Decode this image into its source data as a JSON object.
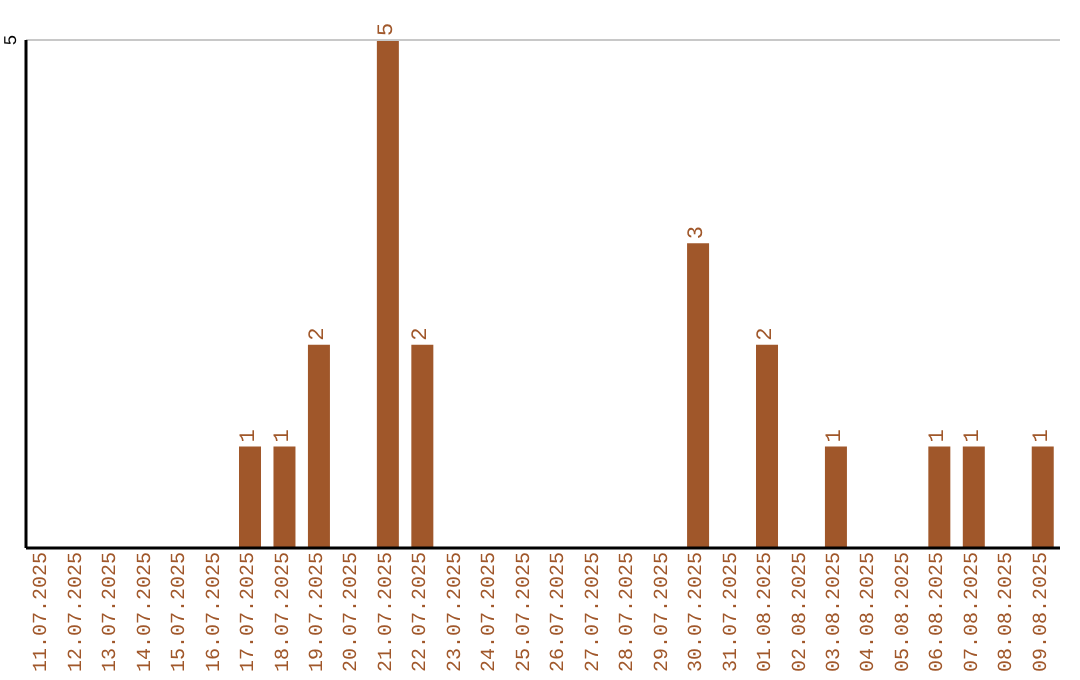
{
  "chart_data": {
    "type": "bar",
    "categories": [
      "11.07.2025",
      "12.07.2025",
      "13.07.2025",
      "14.07.2025",
      "15.07.2025",
      "16.07.2025",
      "17.07.2025",
      "18.07.2025",
      "19.07.2025",
      "20.07.2025",
      "21.07.2025",
      "22.07.2025",
      "23.07.2025",
      "24.07.2025",
      "25.07.2025",
      "26.07.2025",
      "27.07.2025",
      "28.07.2025",
      "29.07.2025",
      "30.07.2025",
      "31.07.2025",
      "01.08.2025",
      "02.08.2025",
      "03.08.2025",
      "04.08.2025",
      "05.08.2025",
      "06.08.2025",
      "07.08.2025",
      "08.08.2025",
      "09.08.2025"
    ],
    "values": [
      0,
      0,
      0,
      0,
      0,
      0,
      1,
      1,
      2,
      0,
      5,
      2,
      0,
      0,
      0,
      0,
      0,
      0,
      0,
      3,
      0,
      2,
      0,
      1,
      0,
      0,
      1,
      1,
      0,
      1
    ],
    "value_labels": [
      null,
      null,
      null,
      null,
      null,
      null,
      "1",
      "1",
      "2",
      null,
      "5",
      "2",
      null,
      null,
      null,
      null,
      null,
      null,
      null,
      "3",
      null,
      "2",
      null,
      "1",
      null,
      null,
      "1",
      "1",
      null,
      "1"
    ],
    "color": "#a0572a",
    "ref_lines": [
      {
        "axis": "y",
        "value": 5,
        "label": "5",
        "color": "#c8c8c8"
      }
    ]
  }
}
